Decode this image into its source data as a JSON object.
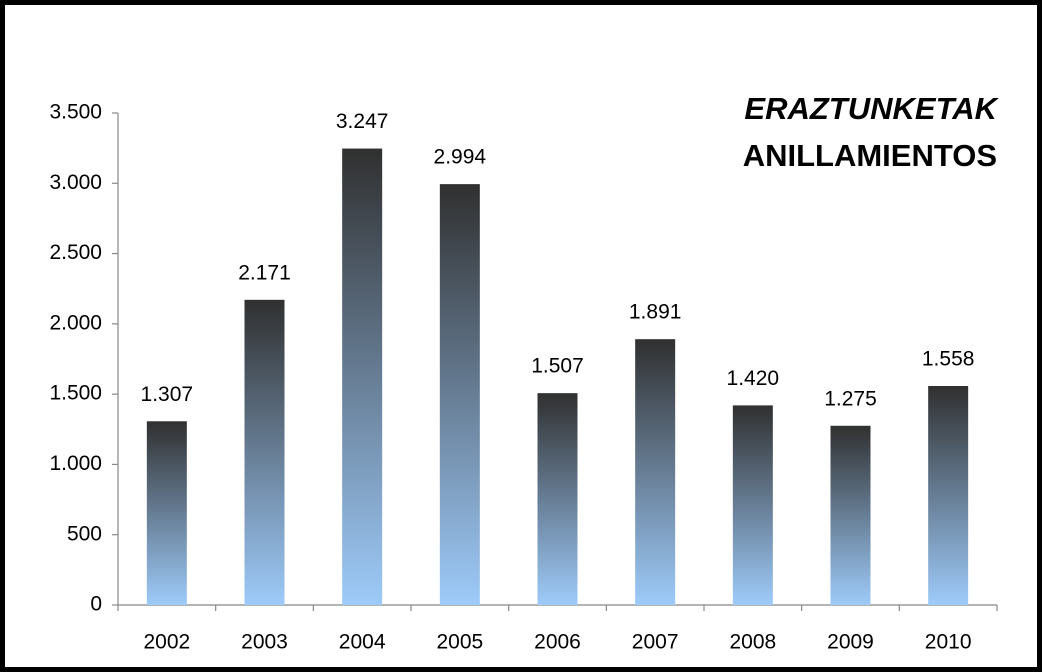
{
  "chart_data": {
    "type": "bar",
    "title": "ERAZTUNKETAK",
    "subtitle": "ANILLAMIENTOS",
    "categories": [
      "2002",
      "2003",
      "2004",
      "2005",
      "2006",
      "2007",
      "2008",
      "2009",
      "2010"
    ],
    "values": [
      1307,
      2171,
      3247,
      2994,
      1507,
      1891,
      1420,
      1275,
      1558
    ],
    "value_labels": [
      "1.307",
      "2.171",
      "3.247",
      "2.994",
      "1.507",
      "1.891",
      "1.420",
      "1.275",
      "1.558"
    ],
    "color": "#9ecbfa",
    "color_top": "#303030",
    "ylim": [
      0,
      3500
    ],
    "yticks": [
      0,
      500,
      {
        "value": 1000,
        "label": "1.000"
      },
      {
        "value": 1500,
        "label": "1.500"
      },
      {
        "value": 2000,
        "label": "2.000"
      },
      {
        "value": 2500,
        "label": "2.500"
      },
      {
        "value": 3000,
        "label": "3.000"
      },
      {
        "value": 3500,
        "label": "3.500"
      }
    ],
    "grid": false
  }
}
